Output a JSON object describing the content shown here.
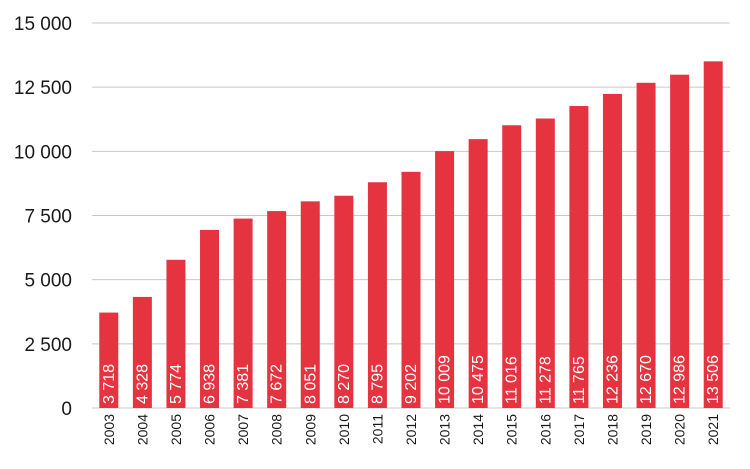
{
  "chart_data": {
    "type": "bar",
    "title": "",
    "xlabel": "",
    "ylabel": "",
    "categories": [
      "2003",
      "2004",
      "2005",
      "2006",
      "2007",
      "2008",
      "2009",
      "2010",
      "2011",
      "2012",
      "2013",
      "2014",
      "2015",
      "2016",
      "2017",
      "2018",
      "2019",
      "2020",
      "2021"
    ],
    "values": [
      3718,
      4328,
      5774,
      6938,
      7381,
      7672,
      8051,
      8270,
      8795,
      9202,
      10009,
      10475,
      11016,
      11278,
      11765,
      12236,
      12670,
      12986,
      13506
    ],
    "value_labels": [
      "3 718",
      "4 328",
      "5 774",
      "6 938",
      "7 381",
      "7 672",
      "8 051",
      "8 270",
      "8 795",
      "9 202",
      "10 009",
      "10 475",
      "11 016",
      "11 278",
      "11 765",
      "12 236",
      "12 670",
      "12 986",
      "13 506"
    ],
    "ylim": [
      0,
      15000
    ],
    "yticks": [
      0,
      2500,
      5000,
      7500,
      10000,
      12500,
      15000
    ],
    "ytick_labels": [
      "0",
      "2 500",
      "5 000",
      "7 500",
      "10 000",
      "12 500",
      "15 000"
    ],
    "grid": true,
    "legend": "none",
    "bar_color": "#e63340",
    "label_color": "#ffffff",
    "grid_color": "#c8c8c8",
    "text_color": "#1a1a1a"
  }
}
